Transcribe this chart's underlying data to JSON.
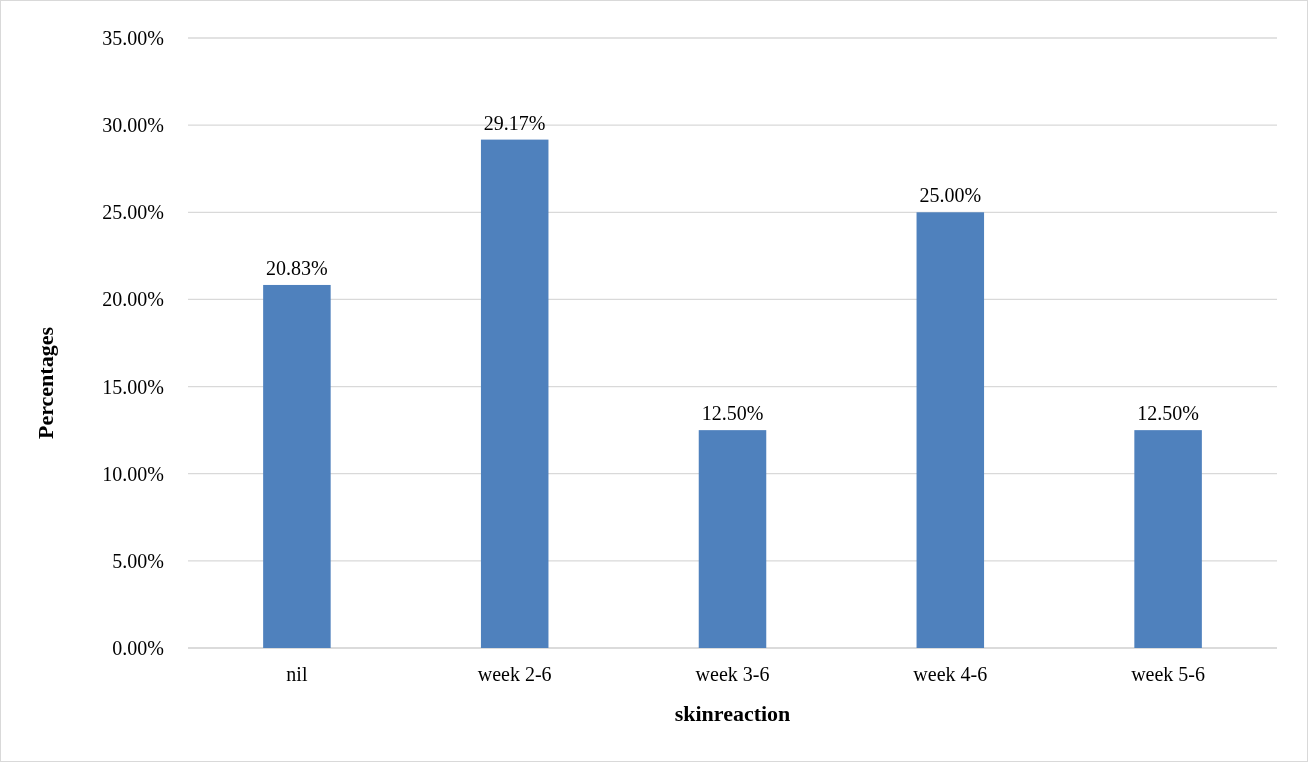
{
  "chart_data": {
    "type": "bar",
    "xlabel": "skinreaction",
    "ylabel": "Percentages",
    "categories": [
      "nil",
      "week 2-6",
      "week 3-6",
      "week 4-6",
      "week 5-6"
    ],
    "values": [
      20.83,
      29.17,
      12.5,
      25,
      12.5
    ],
    "value_labels": [
      "20.83%",
      "29.17%",
      "12.50%",
      "25.00%",
      "12.50%"
    ],
    "color": "#4f81bd",
    "ylim": [
      0,
      35
    ],
    "yticks": [
      {
        "value": 0,
        "label": "0.00%"
      },
      {
        "value": 5,
        "label": "5.00%"
      },
      {
        "value": 10,
        "label": "10.00%"
      },
      {
        "value": 15,
        "label": "15.00%"
      },
      {
        "value": 20,
        "label": "20.00%"
      },
      {
        "value": 25,
        "label": "25.00%"
      },
      {
        "value": 30,
        "label": "30.00%"
      },
      {
        "value": 35,
        "label": "35.00%"
      }
    ],
    "grid": "y"
  }
}
